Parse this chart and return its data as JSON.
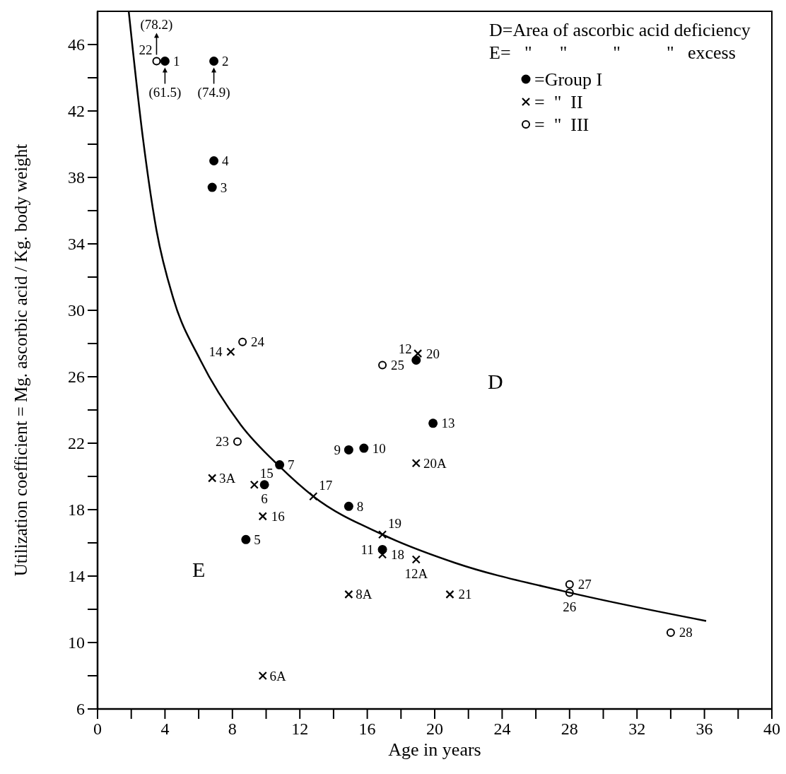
{
  "chart_data": {
    "type": "scatter",
    "xlabel": "Age in years",
    "ylabel": "Utilization coefficient = Mg. ascorbic acid / Kg. body weight",
    "xlim": [
      0,
      40
    ],
    "xticks": [
      0,
      {
        "value": 2,
        "label": null
      },
      4,
      {
        "value": 6,
        "label": null
      },
      8,
      {
        "value": 10,
        "label": null
      },
      12,
      {
        "value": 14,
        "label": null
      },
      16,
      {
        "value": 18,
        "label": null
      },
      20,
      {
        "value": 22,
        "label": null
      },
      24,
      {
        "value": 26,
        "label": null
      },
      28,
      {
        "value": 30,
        "label": null
      },
      32,
      {
        "value": 34,
        "label": null
      },
      36,
      {
        "value": 38,
        "label": null
      },
      40
    ],
    "ylim": [
      6,
      48
    ],
    "yticks": [
      6,
      {
        "value": 8,
        "label": null
      },
      10,
      {
        "value": 12,
        "label": null
      },
      14,
      {
        "value": 16,
        "label": null
      },
      18,
      {
        "value": 20,
        "label": null
      },
      22,
      {
        "value": 24,
        "label": null
      },
      26,
      {
        "value": 28,
        "label": null
      },
      30,
      {
        "value": 32,
        "label": null
      },
      34,
      {
        "value": 36,
        "label": null
      },
      38,
      {
        "value": 40,
        "label": null
      },
      42,
      {
        "value": 44,
        "label": null
      },
      46
    ],
    "legend": "top right",
    "series": [
      {
        "name": "=Group I",
        "marker": "circle",
        "color": "#000000",
        "x": [
          4,
          6.9,
          6.8,
          6.9,
          8.8,
          9.9,
          10.8,
          14.9,
          14.9,
          15.8,
          16.9,
          18.9,
          19.9
        ],
        "values": [
          45,
          45,
          37.4,
          39,
          16.2,
          19.5,
          20.7,
          18.2,
          21.6,
          21.7,
          15.6,
          27,
          23.2
        ]
      },
      {
        "name": "=  \"  II",
        "marker": "cross",
        "color": "#000000",
        "x": [
          6.8,
          9.8,
          14.9,
          18.9,
          7.9,
          9.3,
          9.8,
          12.8,
          16.9,
          16.9,
          19,
          18.9,
          20.9
        ],
        "values": [
          19.9,
          8,
          12.9,
          15,
          27.5,
          19.5,
          17.6,
          18.8,
          15.3,
          16.5,
          27.4,
          20.8,
          12.9
        ]
      },
      {
        "name": "=  \"  III",
        "marker": "circle",
        "color": "#000000",
        "x": [
          3.5,
          8.3,
          8.6,
          16.9,
          28,
          28,
          34
        ],
        "values": [
          45,
          22.1,
          28.1,
          26.7,
          13,
          13.5,
          10.6
        ]
      },
      {
        "type": "line",
        "marker": "none",
        "line_style": "solid",
        "color": "#000000",
        "x": [
          1.85,
          2.7,
          3.5,
          4.5,
          6.1,
          8.5,
          10.8,
          12.8,
          16.9,
          21.2,
          27.6,
          36.1
        ],
        "values": [
          48,
          40.3,
          34.8,
          30.7,
          27,
          23.1,
          20.6,
          18.8,
          16.5,
          14.8,
          13.1,
          11.3
        ]
      }
    ],
    "annotations": [
      "D=Area of ascorbic acid deficiency",
      "E=   \"      \"          \"          \"   excess",
      "D",
      "E",
      {
        "text": "1",
        "x": 4,
        "y": 45
      },
      {
        "text": "(61.5)",
        "x": 4,
        "y": 45
      },
      {
        "text": "2",
        "x": 6.9,
        "y": 45
      },
      {
        "text": "(74.9)",
        "x": 6.9,
        "y": 45
      },
      {
        "text": "22",
        "x": 3.5,
        "y": 45
      },
      {
        "text": "(78.2)",
        "x": 3.5,
        "y": 45
      },
      {
        "text": "4",
        "x": 6.9,
        "y": 39
      },
      {
        "text": "3",
        "x": 6.8,
        "y": 37.4
      },
      {
        "text": "24",
        "x": 8.6,
        "y": 28.1
      },
      {
        "text": "14",
        "x": 7.9,
        "y": 27.5
      },
      {
        "text": "25",
        "x": 16.9,
        "y": 26.7
      },
      {
        "text": "23",
        "x": 8.3,
        "y": 22.1
      },
      {
        "text": "9",
        "x": 14.9,
        "y": 21.6
      },
      {
        "text": "10",
        "x": 15.8,
        "y": 21.7
      },
      {
        "text": "7",
        "x": 10.8,
        "y": 20.7
      },
      {
        "text": "3A",
        "x": 6.8,
        "y": 19.9
      },
      {
        "text": "15",
        "x": 9.3,
        "y": 19.5
      },
      {
        "text": "6",
        "x": 9.9,
        "y": 19.5
      },
      {
        "text": "17",
        "x": 12.8,
        "y": 18.8
      },
      {
        "text": "8",
        "x": 14.9,
        "y": 18.2
      },
      {
        "text": "16",
        "x": 9.8,
        "y": 17.6
      },
      {
        "text": "5",
        "x": 8.8,
        "y": 16.2
      },
      {
        "text": "19",
        "x": 16.9,
        "y": 16.5
      },
      {
        "text": "11",
        "x": 16.9,
        "y": 15.6
      },
      {
        "text": "18",
        "x": 16.9,
        "y": 15.3
      },
      {
        "text": "8A",
        "x": 14.9,
        "y": 12.9
      },
      {
        "text": "6A",
        "x": 9.8,
        "y": 8
      },
      {
        "text": "20",
        "x": 19,
        "y": 27.4
      },
      {
        "text": "12",
        "x": 18.9,
        "y": 27
      },
      {
        "text": "13",
        "x": 19.9,
        "y": 23.2
      },
      {
        "text": "20A",
        "x": 18.9,
        "y": 20.8
      },
      {
        "text": "12A",
        "x": 18.9,
        "y": 15
      },
      {
        "text": "21",
        "x": 20.9,
        "y": 12.9
      },
      {
        "text": "27",
        "x": 28,
        "y": 13.5
      },
      {
        "text": "26",
        "x": 28,
        "y": 13
      },
      {
        "text": "28",
        "x": 34,
        "y": 10.6
      }
    ]
  }
}
